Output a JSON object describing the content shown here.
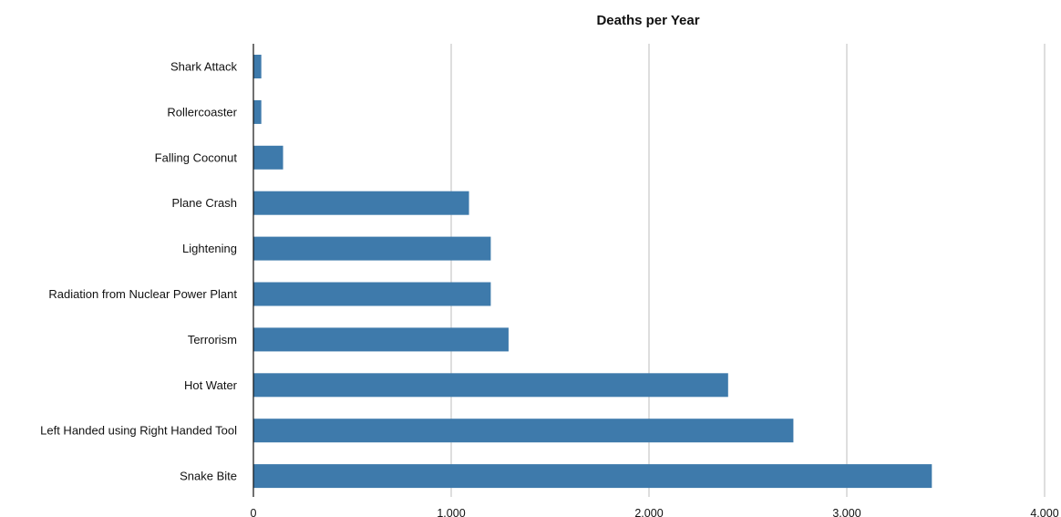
{
  "chart_data": {
    "type": "bar",
    "orientation": "horizontal",
    "title": "Deaths per Year",
    "xlabel": "",
    "ylabel": "",
    "categories": [
      "Shark Attack",
      "Rollercoaster",
      "Falling Coconut",
      "Plane Crash",
      "Lightening",
      "Radiation from Nuclear Power Plant",
      "Terrorism",
      "Hot Water",
      "Left Handed using Right Handed Tool",
      "Snake Bite"
    ],
    "values": [
      40,
      40,
      150,
      1090,
      1200,
      1200,
      1290,
      2400,
      2730,
      3430
    ],
    "xlim": [
      0,
      4000
    ],
    "x_ticks": [
      0,
      1000,
      2000,
      3000,
      4000
    ],
    "x_tick_labels": [
      "0",
      "1.000",
      "2.000",
      "3.000",
      "4.000"
    ],
    "grid": true,
    "bar_color": "#3e7aab"
  }
}
